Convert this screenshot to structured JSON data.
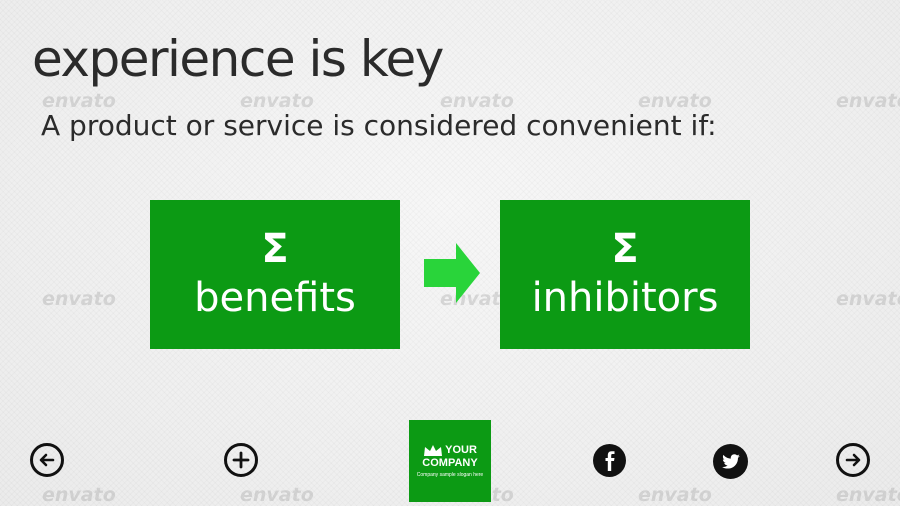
{
  "slide": {
    "title": "experience is key",
    "subtitle": "A product or service is considered convenient if:"
  },
  "boxes": {
    "left": {
      "symbol": "Σ",
      "label": "benefits"
    },
    "right": {
      "symbol": "Σ",
      "label": "inhibitors"
    }
  },
  "logo": {
    "line1": "YOUR",
    "line2": "COMPANY",
    "slogan": "Company sample slogan here"
  },
  "watermark": {
    "text": "envato"
  },
  "colors": {
    "accent_green": "#0c9a14",
    "arrow_green": "#29d43a",
    "text_dark": "#2b2b2b",
    "background": "#efefef"
  },
  "icons": {
    "prev": "arrow-left-circle-icon",
    "add": "plus-circle-icon",
    "facebook": "facebook-icon",
    "twitter": "twitter-icon",
    "next": "arrow-right-circle-icon"
  }
}
